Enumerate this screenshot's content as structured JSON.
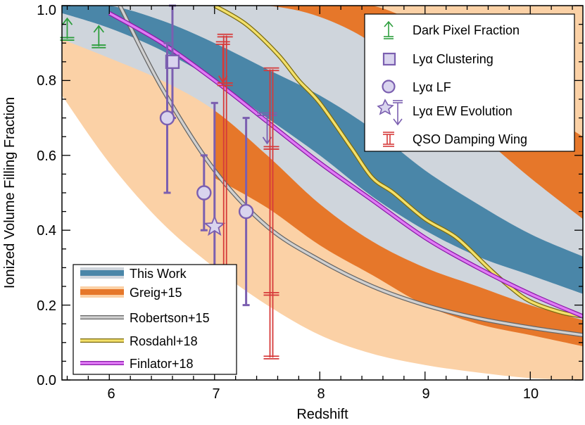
{
  "chart_data": {
    "type": "line",
    "title": "",
    "xlabel": "Redshift",
    "ylabel": "Ionized Volume Filling Fraction",
    "xlim": [
      5.55,
      10.5
    ],
    "ylim": [
      0.0,
      1.0
    ],
    "xticks": [
      6,
      7,
      8,
      9,
      10
    ],
    "yticks": [
      0.0,
      0.2,
      0.4,
      0.6,
      0.8,
      1.0
    ],
    "xtick_labels": [
      "6",
      "7",
      "8",
      "9",
      "10"
    ],
    "ytick_labels": [
      "0.0",
      "0.2",
      "0.4",
      "0.6",
      "0.8",
      "1.0"
    ],
    "colors": {
      "this_work_68": "#4a86a8",
      "this_work_95": "#cfd5dc",
      "greig_68": "#e6772a",
      "greig_95": "#fbd1a6",
      "robertson": "#b0b0b0",
      "rosdahl": "#e6d36a",
      "finlator": "#cc44ee",
      "dark_pixel": "#2e9e3e",
      "lya_points": "#7b5fb0",
      "lya_fill": "#d9d4ee",
      "qso": "#d63a3a"
    },
    "bands": [
      {
        "name": "Greig+15 95%",
        "x": [
          5.55,
          6.0,
          6.5,
          7.0,
          7.5,
          8.0,
          8.5,
          9.0,
          9.5,
          10.0,
          10.5
        ],
        "upper": [
          0.97,
          1.0,
          1.0,
          1.0,
          1.0,
          1.0,
          1.0,
          1.0,
          1.0,
          1.0,
          1.0
        ],
        "lower": [
          0.76,
          0.58,
          0.42,
          0.3,
          0.2,
          0.12,
          0.07,
          0.04,
          0.02,
          0.005,
          0.0
        ]
      },
      {
        "name": "Greig+15 68%",
        "x": [
          7.0,
          7.5,
          8.0,
          8.5,
          9.0,
          9.5,
          10.0,
          10.5
        ],
        "upper": [
          1.0,
          1.0,
          1.0,
          1.0,
          0.94,
          0.84,
          0.74,
          0.65
        ],
        "lower": [
          0.54,
          0.46,
          0.36,
          0.28,
          0.2,
          0.15,
          0.12,
          0.09
        ]
      },
      {
        "name": "This Work 95%",
        "x": [
          5.55,
          6.0,
          6.5,
          7.0,
          7.5,
          8.0,
          8.5,
          9.0,
          9.5,
          10.0,
          10.5
        ],
        "upper": [
          1.0,
          1.0,
          1.0,
          1.0,
          1.0,
          0.97,
          0.9,
          0.78,
          0.66,
          0.54,
          0.43
        ],
        "lower": [
          0.91,
          0.86,
          0.8,
          0.72,
          0.6,
          0.47,
          0.37,
          0.3,
          0.25,
          0.2,
          0.16
        ]
      },
      {
        "name": "This Work 68%",
        "x": [
          5.55,
          6.0,
          6.5,
          7.0,
          7.5,
          8.0,
          8.5,
          9.0,
          9.5,
          10.0,
          10.5
        ],
        "upper": [
          1.0,
          1.0,
          0.96,
          0.9,
          0.83,
          0.76,
          0.67,
          0.56,
          0.47,
          0.39,
          0.33
        ],
        "lower": [
          0.98,
          0.94,
          0.88,
          0.8,
          0.7,
          0.6,
          0.49,
          0.4,
          0.33,
          0.28,
          0.23
        ]
      }
    ],
    "series": [
      {
        "name": "Robertson+15",
        "x": [
          6.1,
          6.5,
          7.0,
          7.5,
          8.0,
          8.5,
          9.0,
          9.5,
          10.0,
          10.5
        ],
        "y": [
          1.0,
          0.78,
          0.56,
          0.41,
          0.32,
          0.25,
          0.2,
          0.165,
          0.14,
          0.12
        ]
      },
      {
        "name": "Rosdahl+18",
        "x": [
          7.0,
          7.3,
          7.6,
          7.8,
          8.0,
          8.3,
          8.5,
          8.7,
          9.0,
          9.3,
          9.6,
          9.8,
          10.0,
          10.3,
          10.5
        ],
        "y": [
          1.0,
          0.95,
          0.87,
          0.8,
          0.74,
          0.62,
          0.54,
          0.5,
          0.43,
          0.38,
          0.3,
          0.25,
          0.21,
          0.18,
          0.17
        ]
      },
      {
        "name": "Finlator+18",
        "x": [
          6.0,
          6.5,
          7.0,
          7.5,
          8.0,
          8.5,
          9.0,
          9.5,
          10.0,
          10.5
        ],
        "y": [
          0.98,
          0.9,
          0.8,
          0.69,
          0.58,
          0.48,
          0.38,
          0.3,
          0.23,
          0.17
        ]
      }
    ],
    "points": [
      {
        "type": "dark_pixel",
        "x": 5.6,
        "y": 0.93
      },
      {
        "type": "dark_pixel",
        "x": 5.9,
        "y": 0.91
      },
      {
        "type": "lya_clustering",
        "x": 6.6,
        "y": 0.85,
        "ylow": 0.7,
        "yhigh": 1.0
      },
      {
        "type": "lya_lf",
        "x": 6.55,
        "y": 0.7,
        "ylow": 0.5,
        "yhigh": 0.9
      },
      {
        "type": "lya_lf",
        "x": 6.9,
        "y": 0.5,
        "ylow": 0.4,
        "yhigh": 0.6
      },
      {
        "type": "lya_lf",
        "x": 7.3,
        "y": 0.45,
        "ylow": 0.2,
        "yhigh": 0.7
      },
      {
        "type": "lya_ew",
        "x": 7.0,
        "y": 0.41,
        "ylow": 0.2,
        "yhigh": 0.74
      },
      {
        "type": "lya_ew_upper",
        "x": 7.5,
        "y": 0.66,
        "ytop": 0.71
      },
      {
        "type": "qso_upper",
        "x": 7.08,
        "y": 0.82,
        "ytop": 0.9
      },
      {
        "type": "qso",
        "x": 7.1,
        "y": 0.79,
        "ylow": 0.19,
        "yhigh": 0.92
      },
      {
        "type": "qso",
        "x": 7.54,
        "y": 0.62,
        "ylow": 0.06,
        "yhigh": 0.83
      },
      {
        "type": "qso_extra_cap",
        "x": 7.54,
        "y": 0.23
      }
    ],
    "legend_lower_left": [
      "This Work",
      "Greig+15",
      "Robertson+15",
      "Rosdahl+18",
      "Finlator+18"
    ],
    "legend_upper_right": [
      "Dark Pixel Fraction",
      "Lyα Clustering",
      "Lyα LF",
      "Lyα EW Evolution",
      "QSO Damping Wing"
    ]
  }
}
